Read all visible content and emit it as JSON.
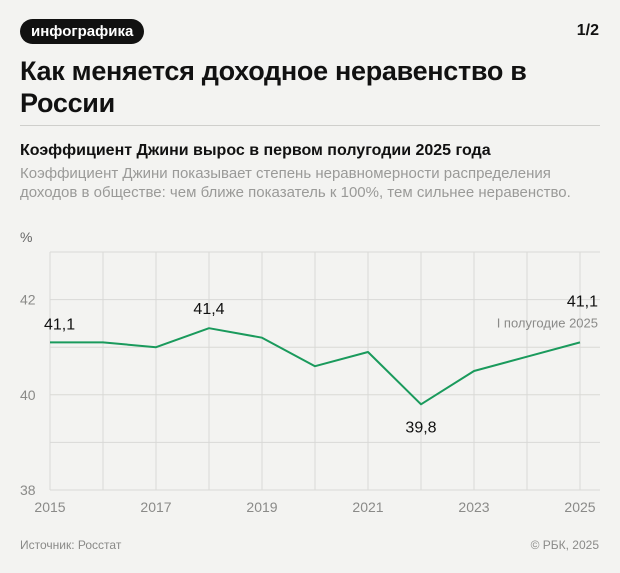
{
  "badge": "инфографика",
  "pager": "1/2",
  "title": "Как меняется доходное неравенство в России",
  "subtitle": "Коэффициент Джини вырос в первом полугодии 2025 года",
  "description": "Коэффициент Джини показывает степень неравномерности распределения доходов в обществе: чем ближе показатель к 100%, тем сильнее неравенство.",
  "unit": "%",
  "source": "Источник: Росстат",
  "copyright": "© РБК, 2025",
  "colors": {
    "line": "#1a9a5c",
    "grid": "#d9d9d6",
    "background": "#f3f3f1"
  },
  "chart_data": {
    "type": "line",
    "ylabel": "%",
    "ylim": [
      38,
      43
    ],
    "yticks": [
      38,
      40,
      42
    ],
    "xlim": [
      2015,
      2025
    ],
    "xticks": [
      2015,
      2017,
      2019,
      2021,
      2023,
      2025
    ],
    "grid": true,
    "series": [
      {
        "x": [
          2015,
          2016,
          2017,
          2018,
          2019,
          2020,
          2021,
          2022,
          2023,
          2024,
          2025
        ],
        "values": [
          41.1,
          41.1,
          41.0,
          41.4,
          41.2,
          40.6,
          40.9,
          39.8,
          40.5,
          40.8,
          41.1
        ]
      }
    ],
    "data_labels": [
      {
        "x": 2015,
        "value": 41.1,
        "text": "41,1"
      },
      {
        "x": 2018,
        "value": 41.4,
        "text": "41,4"
      },
      {
        "x": 2022,
        "value": 39.8,
        "text": "39,8"
      },
      {
        "x": 2025,
        "value": 41.1,
        "text": "41,1"
      }
    ],
    "annotations": [
      {
        "x": 2025,
        "value": 41.1,
        "text": "I полугодие 2025"
      }
    ]
  }
}
